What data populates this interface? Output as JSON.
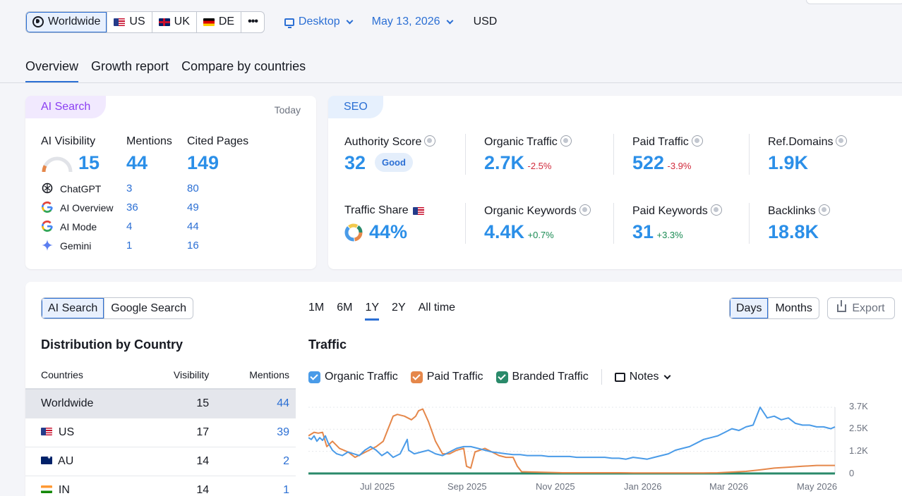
{
  "toolbar": {
    "databases": [
      {
        "label": "Worldwide",
        "icon": "globe-icon"
      },
      {
        "label": "US",
        "icon": "us-flag-icon"
      },
      {
        "label": "UK",
        "icon": "uk-flag-icon"
      },
      {
        "label": "DE",
        "icon": "de-flag-icon"
      }
    ],
    "more": "•••",
    "device": "Desktop",
    "date": "May 13, 2026",
    "currency": "USD"
  },
  "tabs": [
    "Overview",
    "Growth report",
    "Compare by countries"
  ],
  "ai": {
    "badge": "AI Search",
    "today": "Today",
    "headers": [
      "AI Visibility",
      "Mentions",
      "Cited Pages"
    ],
    "totals": [
      "15",
      "44",
      "149"
    ],
    "rows": [
      {
        "name": "ChatGPT",
        "mentions": "3",
        "cited": "80"
      },
      {
        "name": "AI Overview",
        "mentions": "36",
        "cited": "49"
      },
      {
        "name": "AI Mode",
        "mentions": "4",
        "cited": "44"
      },
      {
        "name": "Gemini",
        "mentions": "1",
        "cited": "16"
      }
    ],
    "visibility_gauge": 0.15
  },
  "seo": {
    "badge": "SEO",
    "authority": {
      "label": "Authority Score",
      "value": "32",
      "status": "Good"
    },
    "organic": {
      "label": "Organic Traffic",
      "value": "2.7K",
      "change": "-2.5%"
    },
    "paid": {
      "label": "Paid Traffic",
      "value": "522",
      "change": "-3.9%"
    },
    "refdomains": {
      "label": "Ref.Domains",
      "value": "1.9K"
    },
    "share": {
      "label": "Traffic Share",
      "value": "44%"
    },
    "org_kw": {
      "label": "Organic Keywords",
      "value": "4.4K",
      "change": "+0.7%"
    },
    "paid_kw": {
      "label": "Paid Keywords",
      "value": "31",
      "change": "+3.3%"
    },
    "backlinks": {
      "label": "Backlinks",
      "value": "18.8K"
    }
  },
  "bottom": {
    "source_toggle": [
      "AI Search",
      "Google Search"
    ],
    "ranges": [
      "1M",
      "6M",
      "1Y",
      "2Y",
      "All time"
    ],
    "granularity": [
      "Days",
      "Months"
    ],
    "export": "Export",
    "dist_title": "Distribution by Country",
    "table": {
      "headers": [
        "Countries",
        "Visibility",
        "Mentions"
      ],
      "rows": [
        {
          "country": "Worldwide",
          "visibility": "15",
          "mentions": "44"
        },
        {
          "country": "US",
          "visibility": "17",
          "mentions": "39"
        },
        {
          "country": "AU",
          "visibility": "14",
          "mentions": "2"
        },
        {
          "country": "IN",
          "visibility": "14",
          "mentions": "1"
        }
      ]
    },
    "traffic_title": "Traffic",
    "notes": "Notes"
  },
  "chart_data": {
    "type": "line",
    "title": "Traffic",
    "x_ticks": [
      "Jul 2025",
      "Sep 2025",
      "Nov 2025",
      "Jan 2026",
      "Mar 2026",
      "May 2026"
    ],
    "y_ticks": [
      "3.7K",
      "2.5K",
      "1.2K",
      "0"
    ],
    "ylim": [
      0,
      3700
    ],
    "series": [
      {
        "name": "Organic Traffic",
        "color": "#4a9be8",
        "points": [
          [
            0,
            2000
          ],
          [
            4,
            1900
          ],
          [
            8,
            2100
          ],
          [
            12,
            1800
          ],
          [
            16,
            2000
          ],
          [
            20,
            1850
          ],
          [
            24,
            2100
          ],
          [
            28,
            1700
          ],
          [
            34,
            1300
          ],
          [
            40,
            1100
          ],
          [
            48,
            1000
          ],
          [
            56,
            1200
          ],
          [
            64,
            1100
          ],
          [
            72,
            1000
          ],
          [
            80,
            1300
          ],
          [
            88,
            1500
          ],
          [
            96,
            1300
          ],
          [
            104,
            1000
          ],
          [
            112,
            1200
          ],
          [
            120,
            900
          ],
          [
            130,
            1100
          ],
          [
            140,
            1900
          ],
          [
            142,
            1300
          ],
          [
            150,
            1100
          ],
          [
            160,
            1200
          ],
          [
            170,
            1300
          ],
          [
            180,
            1100
          ],
          [
            190,
            1000
          ],
          [
            200,
            1200
          ],
          [
            210,
            1400
          ],
          [
            220,
            1500
          ],
          [
            230,
            1500
          ],
          [
            240,
            1400
          ],
          [
            250,
            1300
          ],
          [
            260,
            1200
          ],
          [
            270,
            1150
          ],
          [
            280,
            1100
          ],
          [
            290,
            1050
          ],
          [
            300,
            1050
          ],
          [
            310,
            1000
          ],
          [
            320,
            1000
          ],
          [
            330,
            1000
          ],
          [
            340,
            950
          ],
          [
            350,
            950
          ],
          [
            360,
            950
          ],
          [
            370,
            950
          ],
          [
            380,
            900
          ],
          [
            390,
            900
          ],
          [
            400,
            900
          ],
          [
            410,
            900
          ],
          [
            420,
            900
          ],
          [
            430,
            850
          ],
          [
            440,
            850
          ],
          [
            450,
            800
          ],
          [
            460,
            900
          ],
          [
            470,
            850
          ],
          [
            480,
            800
          ],
          [
            490,
            900
          ],
          [
            500,
            1000
          ],
          [
            510,
            1100
          ],
          [
            520,
            1300
          ],
          [
            530,
            1400
          ],
          [
            540,
            1500
          ],
          [
            550,
            1700
          ],
          [
            560,
            1900
          ],
          [
            570,
            2000
          ],
          [
            580,
            2100
          ],
          [
            590,
            2300
          ],
          [
            600,
            2500
          ],
          [
            610,
            2400
          ],
          [
            620,
            2600
          ],
          [
            630,
            2700
          ],
          [
            640,
            3700
          ],
          [
            650,
            3100
          ],
          [
            660,
            3200
          ],
          [
            670,
            3000
          ],
          [
            680,
            3100
          ],
          [
            690,
            2800
          ],
          [
            700,
            2700
          ],
          [
            710,
            2700
          ],
          [
            720,
            2600
          ],
          [
            730,
            2600
          ],
          [
            740,
            2500
          ],
          [
            746,
            2600
          ]
        ]
      },
      {
        "name": "Paid Traffic",
        "color": "#e5874a",
        "points": [
          [
            0,
            2100
          ],
          [
            8,
            2300
          ],
          [
            14,
            2250
          ],
          [
            20,
            2300
          ],
          [
            26,
            1500
          ],
          [
            34,
            1800
          ],
          [
            44,
            1400
          ],
          [
            56,
            1200
          ],
          [
            66,
            900
          ],
          [
            76,
            1100
          ],
          [
            86,
            1300
          ],
          [
            96,
            1500
          ],
          [
            106,
            1800
          ],
          [
            114,
            2600
          ],
          [
            120,
            3200
          ],
          [
            126,
            3300
          ],
          [
            136,
            3200
          ],
          [
            146,
            3000
          ],
          [
            152,
            3200
          ],
          [
            156,
            3500
          ],
          [
            162,
            3600
          ],
          [
            170,
            2900
          ],
          [
            180,
            1800
          ],
          [
            190,
            1100
          ],
          [
            200,
            1100
          ],
          [
            210,
            1300
          ],
          [
            220,
            1400
          ],
          [
            224,
            400
          ],
          [
            230,
            300
          ],
          [
            236,
            1200
          ],
          [
            250,
            1400
          ],
          [
            260,
            1200
          ],
          [
            270,
            1000
          ],
          [
            280,
            900
          ],
          [
            290,
            900
          ],
          [
            296,
            400
          ],
          [
            302,
            100
          ],
          [
            320,
            80
          ],
          [
            340,
            60
          ],
          [
            360,
            40
          ],
          [
            380,
            40
          ],
          [
            400,
            40
          ],
          [
            420,
            40
          ],
          [
            440,
            40
          ],
          [
            460,
            30
          ],
          [
            480,
            30
          ],
          [
            500,
            30
          ],
          [
            520,
            30
          ],
          [
            540,
            30
          ],
          [
            560,
            30
          ],
          [
            580,
            40
          ],
          [
            600,
            80
          ],
          [
            620,
            120
          ],
          [
            640,
            200
          ],
          [
            660,
            300
          ],
          [
            680,
            350
          ],
          [
            700,
            400
          ],
          [
            720,
            450
          ],
          [
            746,
            450
          ]
        ]
      },
      {
        "name": "Branded Traffic",
        "color": "#2a8a6a",
        "points": [
          [
            0,
            0
          ],
          [
            746,
            0
          ]
        ]
      }
    ]
  }
}
